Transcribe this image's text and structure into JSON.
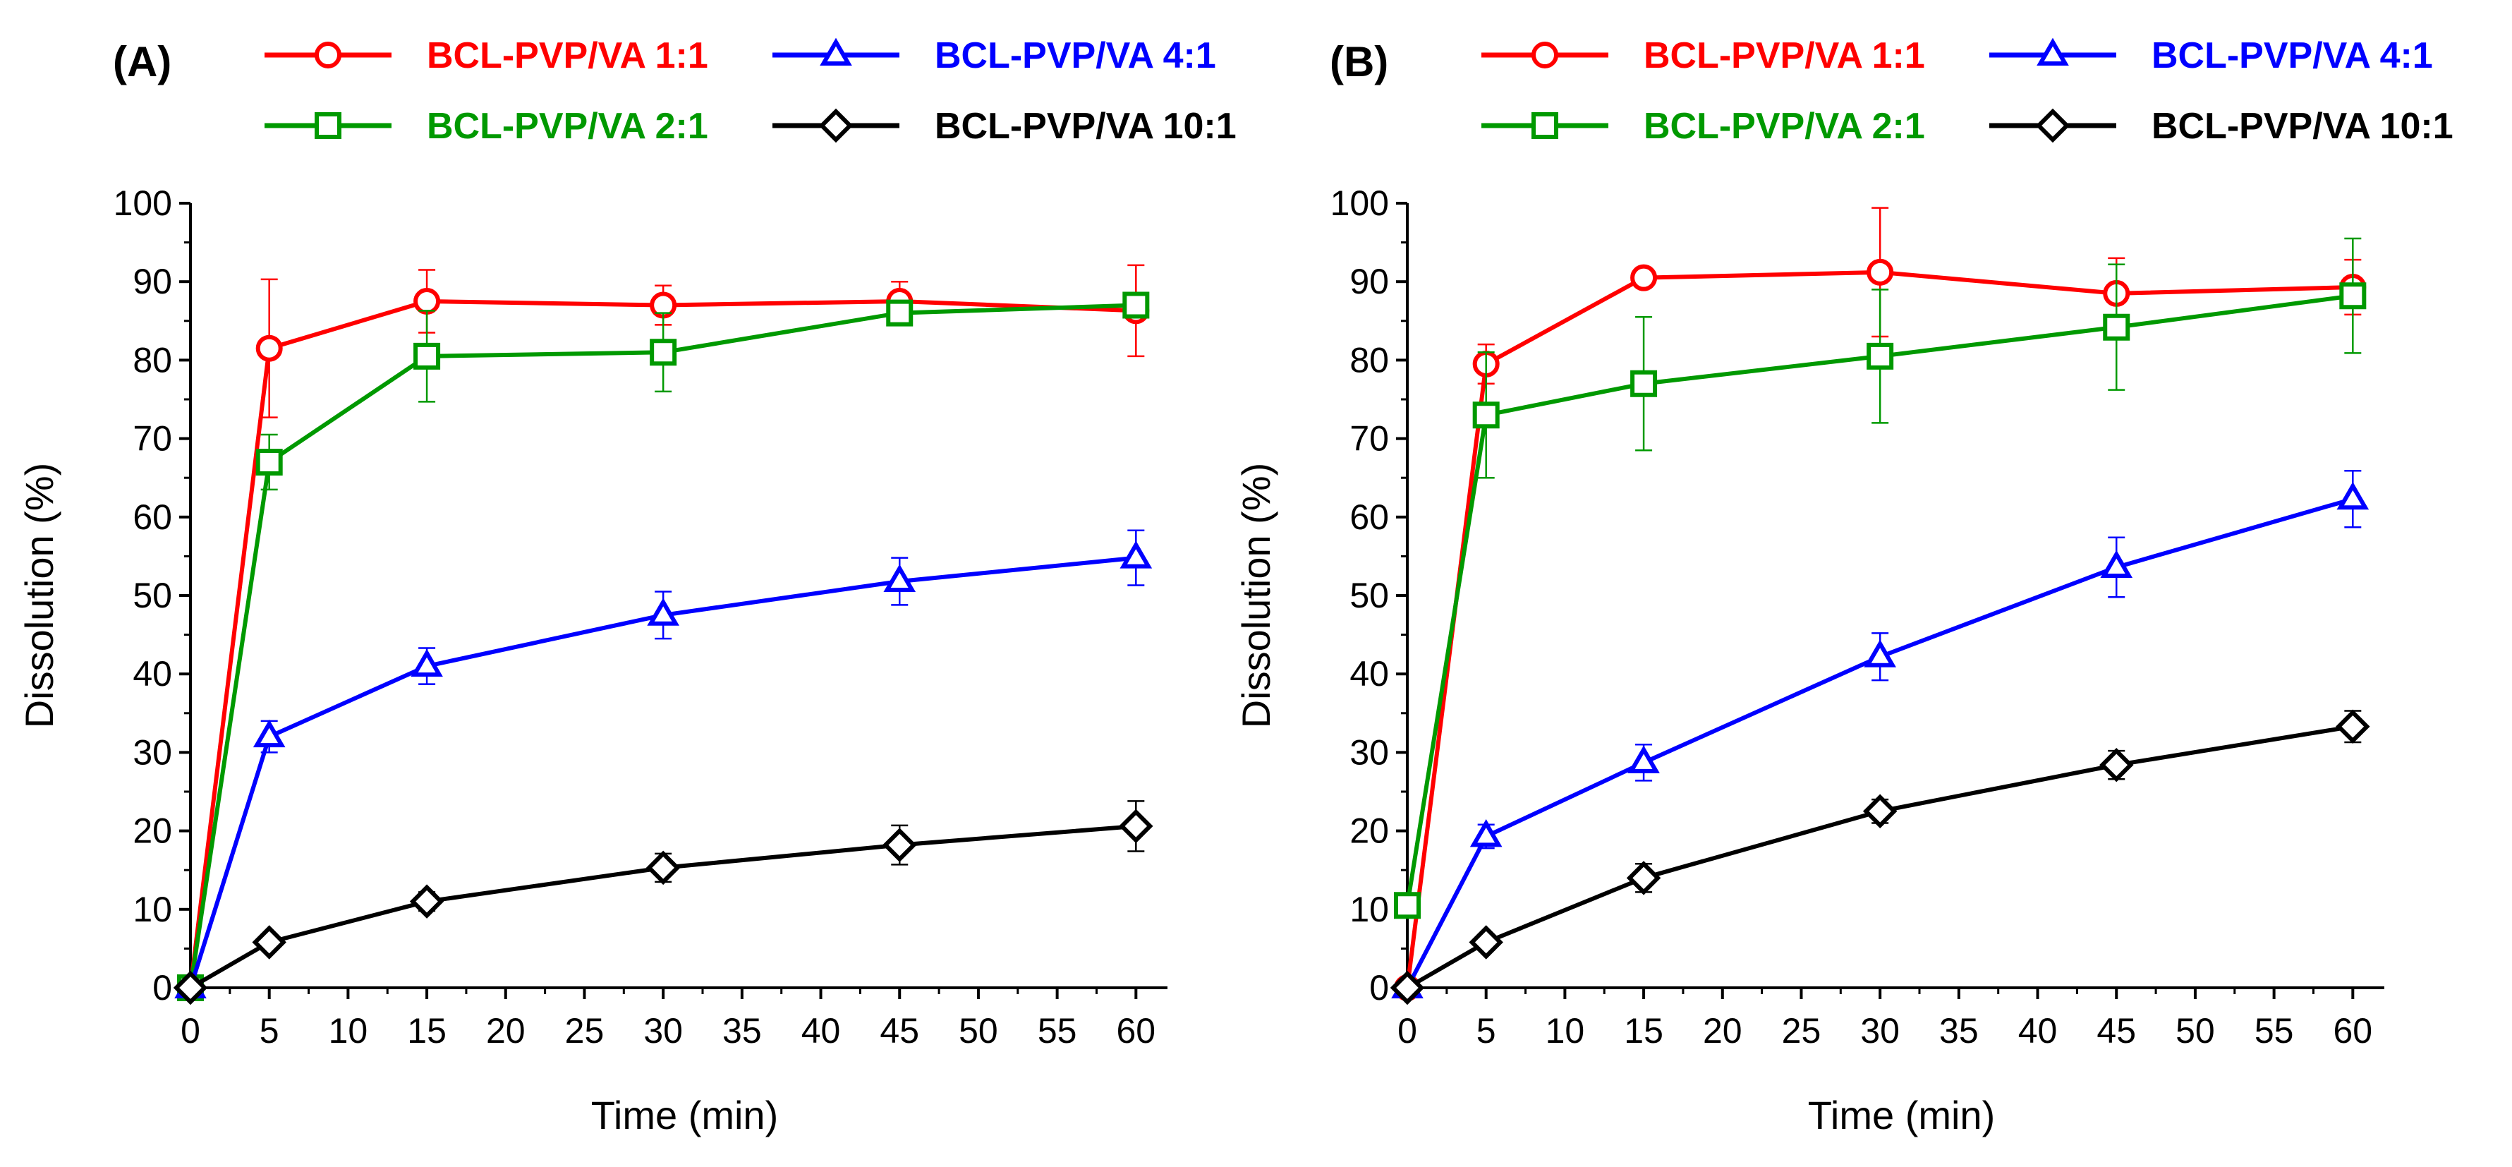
{
  "chart_data": [
    {
      "panel_label": "(A)",
      "type": "line",
      "xlabel": "Time (min)",
      "ylabel": "Dissolution (%)",
      "xlim": [
        0,
        62
      ],
      "ylim": [
        0,
        100
      ],
      "xticks": [
        0,
        5,
        10,
        15,
        20,
        25,
        30,
        35,
        40,
        45,
        50,
        55,
        60
      ],
      "yticks": [
        0,
        10,
        20,
        30,
        40,
        50,
        60,
        70,
        80,
        90,
        100
      ],
      "legend_position": "top",
      "series": [
        {
          "name": "BCL-PVP/VA 1:1",
          "color": "#ff0000",
          "marker": "circle",
          "x": [
            0,
            5,
            15,
            30,
            45,
            60
          ],
          "y": [
            0,
            81.5,
            87.5,
            87,
            87.5,
            86.3
          ],
          "err": [
            0,
            8.8,
            4.0,
            2.5,
            2.5,
            5.8
          ]
        },
        {
          "name": "BCL-PVP/VA 2:1",
          "color": "#009900",
          "marker": "square",
          "x": [
            0,
            5,
            15,
            30,
            45,
            60
          ],
          "y": [
            0,
            67,
            80.5,
            81,
            86,
            87
          ],
          "err": [
            0,
            3.5,
            5.8,
            5.0,
            1.5,
            1.0
          ]
        },
        {
          "name": "BCL-PVP/VA 4:1",
          "color": "#0000ff",
          "marker": "triangle",
          "x": [
            0,
            5,
            15,
            30,
            45,
            60
          ],
          "y": [
            0,
            32,
            41,
            47.5,
            51.8,
            54.8
          ],
          "err": [
            0,
            2.0,
            2.3,
            3.0,
            3.0,
            3.5
          ]
        },
        {
          "name": "BCL-PVP/VA 10:1",
          "color": "#000000",
          "marker": "diamond",
          "x": [
            0,
            5,
            15,
            30,
            45,
            60
          ],
          "y": [
            0,
            5.8,
            11,
            15.3,
            18.2,
            20.6
          ],
          "err": [
            0,
            1.0,
            1.2,
            1.8,
            2.5,
            3.2
          ]
        }
      ]
    },
    {
      "panel_label": "(B)",
      "type": "line",
      "xlabel": "Time (min)",
      "ylabel": "Dissolution (%)",
      "xlim": [
        0,
        62
      ],
      "ylim": [
        0,
        100
      ],
      "xticks": [
        0,
        5,
        10,
        15,
        20,
        25,
        30,
        35,
        40,
        45,
        50,
        55,
        60
      ],
      "yticks": [
        0,
        10,
        20,
        30,
        40,
        50,
        60,
        70,
        80,
        90,
        100
      ],
      "legend_position": "top",
      "series": [
        {
          "name": "BCL-PVP/VA 1:1",
          "color": "#ff0000",
          "marker": "circle",
          "x": [
            0,
            5,
            15,
            30,
            45,
            60
          ],
          "y": [
            0,
            79.5,
            90.5,
            91.2,
            88.5,
            89.3
          ],
          "err": [
            0,
            2.5,
            1.0,
            8.2,
            4.5,
            3.5
          ]
        },
        {
          "name": "BCL-PVP/VA 2:1",
          "color": "#009900",
          "marker": "square",
          "x": [
            0,
            5,
            15,
            30,
            45,
            60
          ],
          "y": [
            10.5,
            73,
            77,
            80.5,
            84.2,
            88.2
          ],
          "err": [
            0,
            8.0,
            8.5,
            8.5,
            8.0,
            7.3
          ]
        },
        {
          "name": "BCL-PVP/VA 4:1",
          "color": "#0000ff",
          "marker": "triangle",
          "x": [
            0,
            5,
            15,
            30,
            45,
            60
          ],
          "y": [
            0,
            19.3,
            28.7,
            42.2,
            53.6,
            62.3
          ],
          "err": [
            0,
            1.5,
            2.3,
            3.0,
            3.8,
            3.6
          ]
        },
        {
          "name": "BCL-PVP/VA 10:1",
          "color": "#000000",
          "marker": "diamond",
          "x": [
            0,
            5,
            15,
            30,
            45,
            60
          ],
          "y": [
            0,
            5.8,
            14,
            22.5,
            28.4,
            33.3
          ],
          "err": [
            0,
            1.0,
            1.8,
            1.5,
            1.8,
            2.0
          ]
        }
      ]
    }
  ]
}
